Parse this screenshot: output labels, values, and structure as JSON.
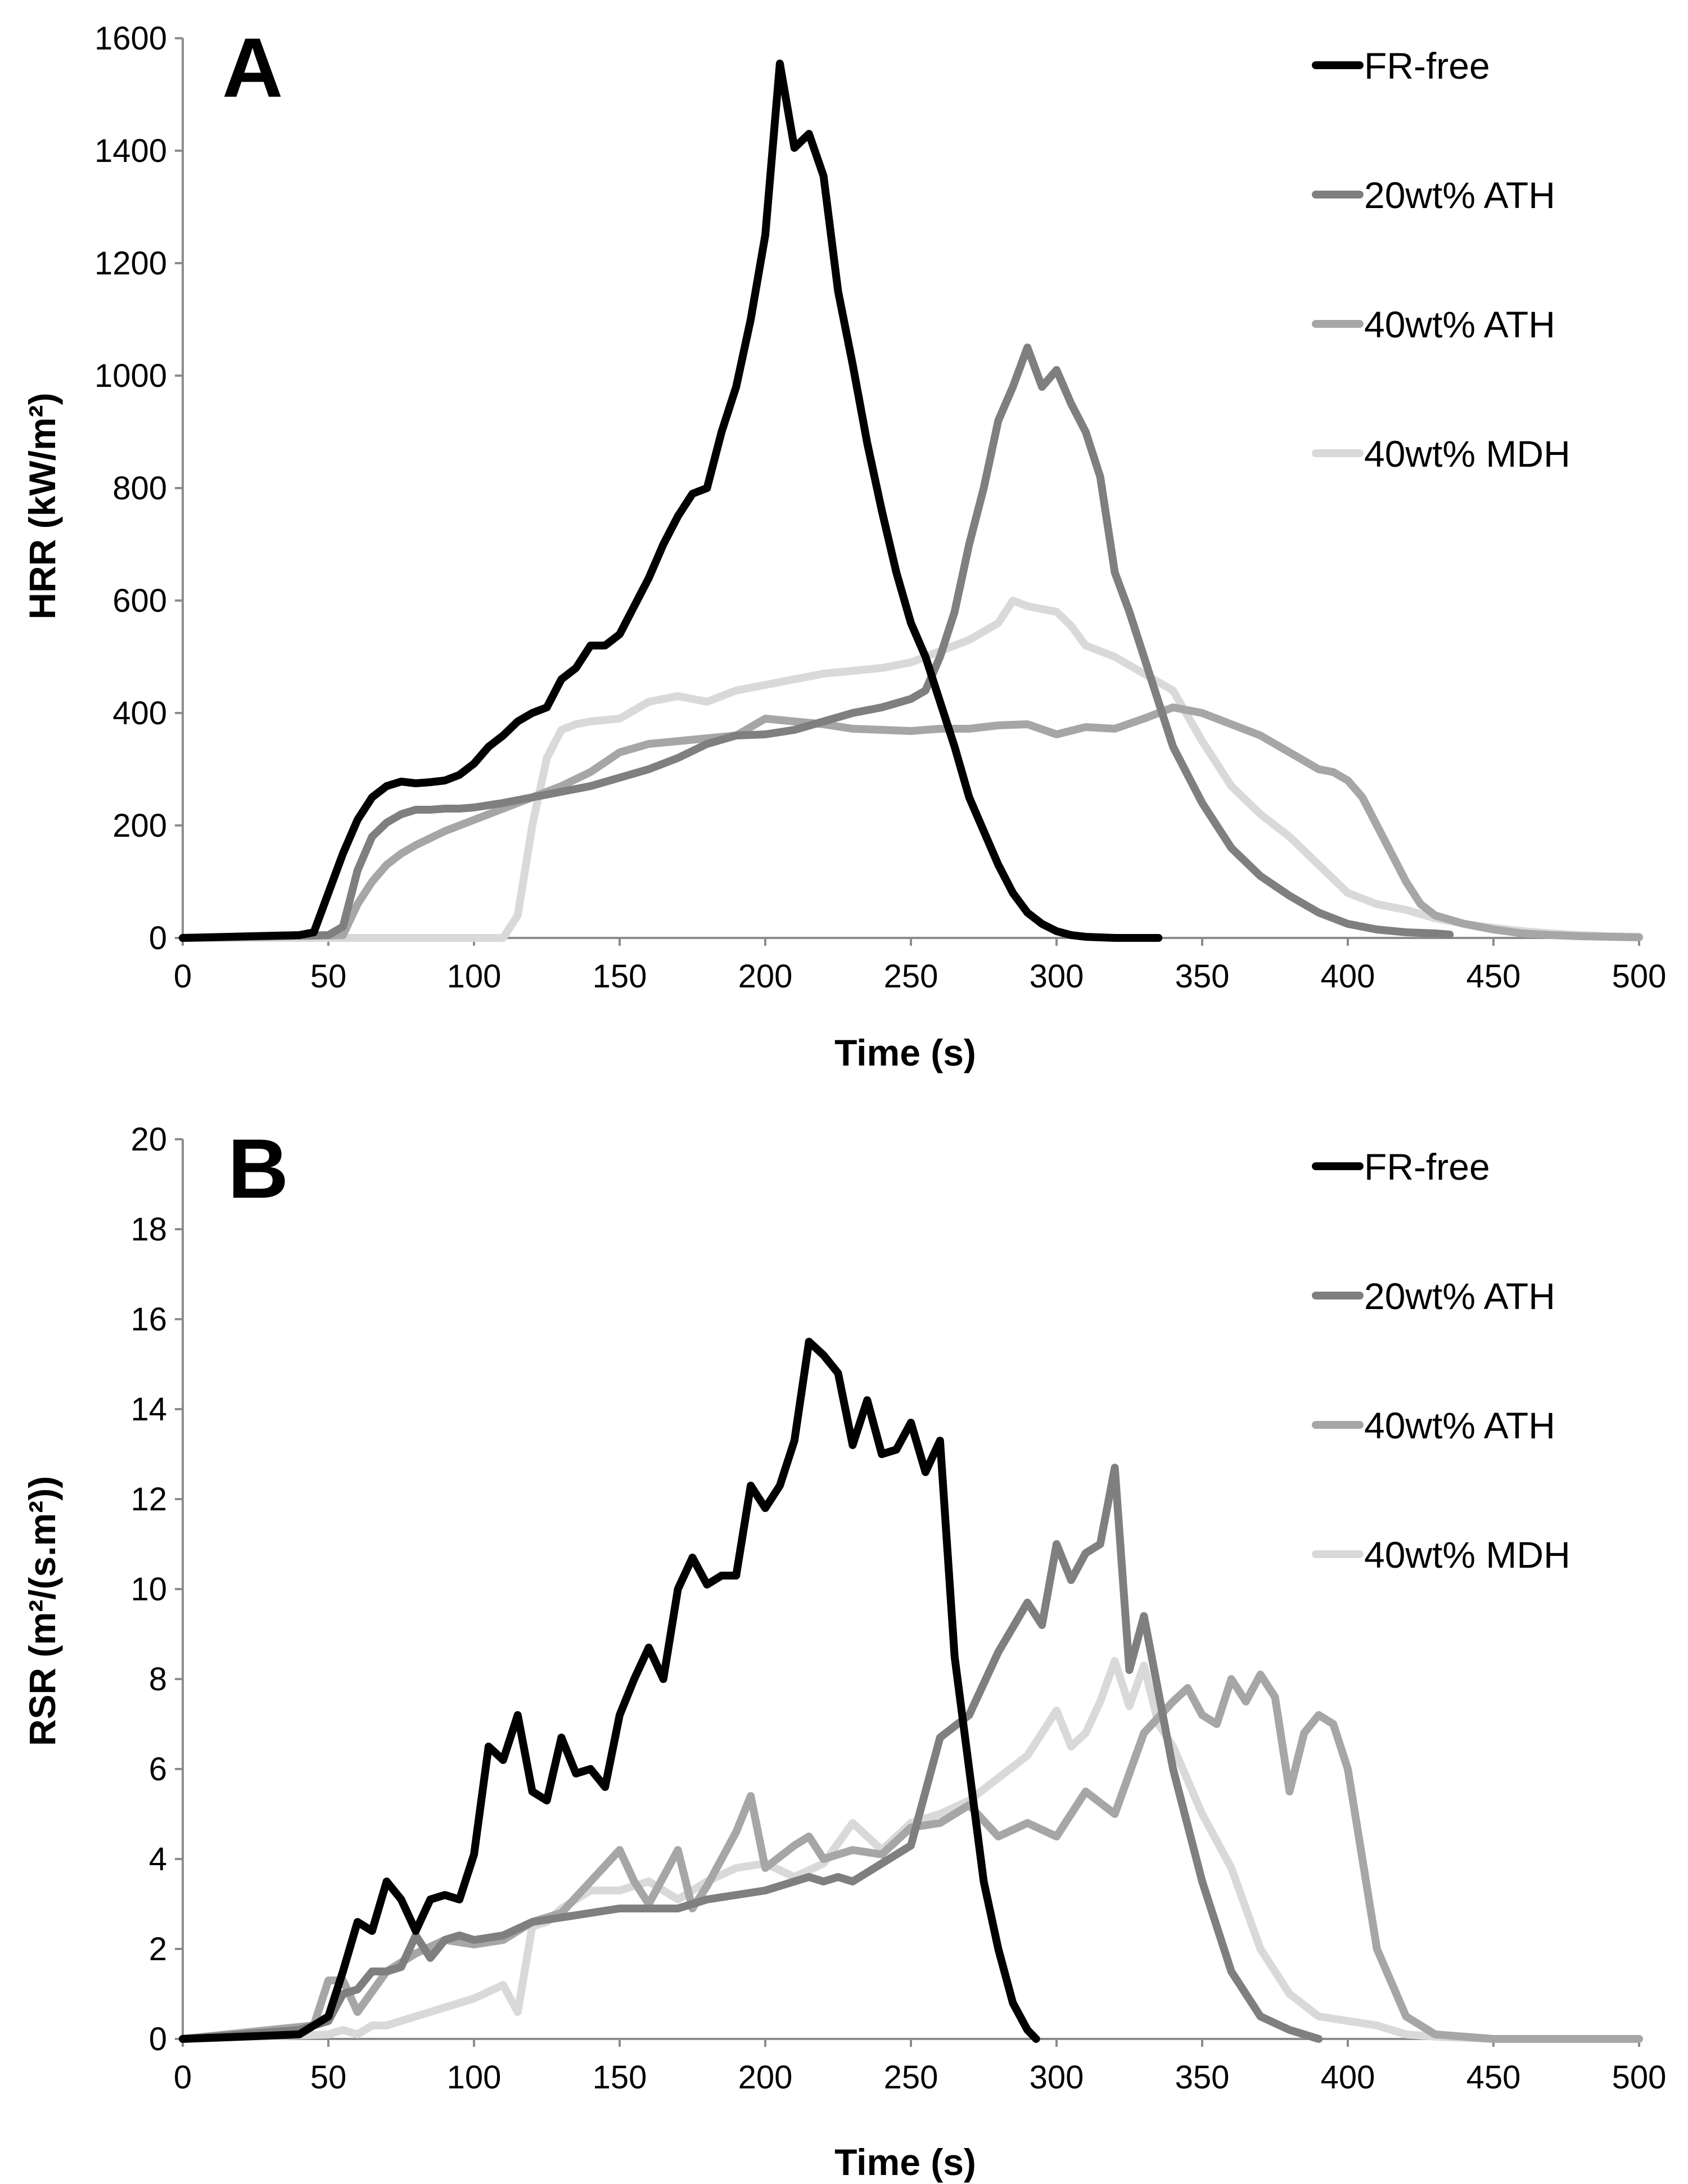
{
  "figure": {
    "panels": [
      "A",
      "B"
    ]
  },
  "chart_data": [
    {
      "panel_label": "A",
      "type": "line",
      "title": "",
      "xlabel": "Time (s)",
      "ylabel": "HRR (kW/m²)",
      "xlim": [
        0,
        500
      ],
      "ylim": [
        0,
        1600
      ],
      "xticks": [
        0,
        50,
        100,
        150,
        200,
        250,
        300,
        350,
        400,
        450,
        500
      ],
      "yticks": [
        0,
        200,
        400,
        600,
        800,
        1000,
        1200,
        1400,
        1600
      ],
      "grid": false,
      "legend": "right",
      "series": [
        {
          "name": "FR-free",
          "color": "#000000",
          "x": [
            0,
            40,
            45,
            50,
            55,
            60,
            65,
            70,
            75,
            80,
            85,
            90,
            95,
            100,
            105,
            110,
            115,
            120,
            125,
            130,
            135,
            140,
            145,
            150,
            155,
            160,
            165,
            170,
            175,
            180,
            185,
            190,
            195,
            200,
            205,
            210,
            215,
            220,
            225,
            230,
            235,
            240,
            245,
            250,
            255,
            260,
            265,
            270,
            275,
            280,
            285,
            290,
            295,
            300,
            305,
            310,
            315,
            320,
            325,
            330,
            335
          ],
          "y": [
            0,
            5,
            10,
            80,
            150,
            210,
            250,
            270,
            278,
            275,
            277,
            280,
            290,
            310,
            340,
            360,
            385,
            400,
            410,
            460,
            480,
            520,
            520,
            540,
            590,
            640,
            700,
            750,
            790,
            800,
            900,
            980,
            1100,
            1250,
            1555,
            1405,
            1430,
            1355,
            1150,
            1020,
            880,
            760,
            650,
            560,
            500,
            420,
            340,
            250,
            190,
            130,
            80,
            45,
            25,
            12,
            5,
            2,
            1,
            0,
            0,
            0,
            0
          ]
        },
        {
          "name": "20wt% ATH",
          "color": "#7f7f7f",
          "x": [
            0,
            50,
            55,
            60,
            65,
            70,
            75,
            80,
            85,
            90,
            95,
            100,
            110,
            120,
            130,
            140,
            150,
            160,
            170,
            180,
            190,
            200,
            210,
            220,
            230,
            240,
            250,
            255,
            260,
            265,
            270,
            275,
            280,
            285,
            290,
            295,
            300,
            305,
            310,
            315,
            320,
            325,
            330,
            340,
            350,
            360,
            370,
            380,
            390,
            400,
            410,
            420,
            430,
            435
          ],
          "y": [
            0,
            5,
            20,
            120,
            180,
            205,
            220,
            228,
            228,
            230,
            230,
            232,
            240,
            250,
            260,
            270,
            285,
            300,
            320,
            345,
            360,
            362,
            370,
            385,
            400,
            410,
            425,
            440,
            500,
            580,
            700,
            800,
            920,
            980,
            1050,
            980,
            1010,
            950,
            900,
            820,
            650,
            580,
            500,
            340,
            240,
            160,
            110,
            75,
            45,
            25,
            15,
            10,
            8,
            6
          ]
        },
        {
          "name": "40wt% ATH",
          "color": "#a6a6a6",
          "x": [
            0,
            55,
            60,
            65,
            70,
            75,
            80,
            90,
            100,
            110,
            120,
            130,
            140,
            150,
            160,
            170,
            180,
            190,
            200,
            210,
            220,
            230,
            240,
            250,
            260,
            270,
            280,
            290,
            300,
            310,
            320,
            330,
            340,
            350,
            360,
            370,
            380,
            390,
            395,
            400,
            405,
            410,
            415,
            420,
            425,
            430,
            440,
            450,
            460,
            470,
            480,
            490,
            500
          ],
          "y": [
            0,
            5,
            60,
            100,
            130,
            150,
            165,
            190,
            210,
            230,
            250,
            270,
            295,
            330,
            345,
            350,
            355,
            360,
            390,
            385,
            380,
            372,
            370,
            368,
            372,
            372,
            378,
            380,
            362,
            375,
            372,
            390,
            410,
            400,
            380,
            360,
            330,
            300,
            295,
            280,
            250,
            200,
            150,
            100,
            60,
            40,
            25,
            15,
            8,
            5,
            3,
            2,
            1
          ]
        },
        {
          "name": "40wt% MDH",
          "color": "#d9d9d9",
          "x": [
            0,
            110,
            115,
            120,
            125,
            130,
            135,
            140,
            150,
            160,
            170,
            180,
            190,
            200,
            210,
            220,
            230,
            240,
            250,
            260,
            270,
            280,
            285,
            290,
            295,
            300,
            305,
            310,
            320,
            330,
            340,
            350,
            360,
            370,
            380,
            390,
            400,
            410,
            420,
            430,
            440,
            450,
            460,
            470,
            480,
            490,
            500
          ],
          "y": [
            0,
            0,
            40,
            200,
            320,
            370,
            380,
            385,
            390,
            420,
            430,
            420,
            440,
            450,
            460,
            470,
            475,
            480,
            490,
            510,
            530,
            560,
            600,
            590,
            585,
            580,
            555,
            520,
            500,
            470,
            440,
            350,
            270,
            220,
            180,
            130,
            80,
            60,
            50,
            35,
            25,
            18,
            12,
            8,
            5,
            3,
            2
          ]
        }
      ]
    },
    {
      "panel_label": "B",
      "type": "line",
      "title": "",
      "xlabel": "Time (s)",
      "ylabel": "RSR (m²/(s.m²))",
      "xlim": [
        0,
        500
      ],
      "ylim": [
        0,
        20
      ],
      "xticks": [
        0,
        50,
        100,
        150,
        200,
        250,
        300,
        350,
        400,
        450,
        500
      ],
      "yticks": [
        0,
        2,
        4,
        6,
        8,
        10,
        12,
        14,
        16,
        18,
        20
      ],
      "grid": false,
      "legend": "right",
      "series": [
        {
          "name": "FR-free",
          "color": "#000000",
          "x": [
            0,
            40,
            45,
            50,
            55,
            60,
            65,
            70,
            75,
            80,
            85,
            90,
            95,
            100,
            105,
            110,
            115,
            120,
            125,
            130,
            135,
            140,
            145,
            150,
            155,
            160,
            165,
            170,
            175,
            180,
            185,
            190,
            195,
            200,
            205,
            210,
            215,
            220,
            225,
            230,
            235,
            240,
            245,
            250,
            255,
            260,
            265,
            270,
            275,
            280,
            285,
            290,
            293
          ],
          "y": [
            0,
            0.1,
            0.3,
            0.5,
            1.5,
            2.6,
            2.4,
            3.5,
            3.1,
            2.4,
            3.1,
            3.2,
            3.1,
            4.1,
            6.5,
            6.2,
            7.2,
            5.5,
            5.3,
            6.7,
            5.9,
            6.0,
            5.6,
            7.2,
            8.0,
            8.7,
            8.0,
            10.0,
            10.7,
            10.1,
            10.3,
            10.3,
            12.3,
            11.8,
            12.3,
            13.3,
            15.5,
            15.2,
            14.8,
            13.2,
            14.2,
            13.0,
            13.1,
            13.7,
            12.6,
            13.3,
            8.5,
            6.0,
            3.5,
            2.0,
            0.8,
            0.2,
            0.0
          ]
        },
        {
          "name": "20wt% ATH",
          "color": "#7f7f7f",
          "x": [
            0,
            40,
            50,
            55,
            60,
            65,
            70,
            75,
            80,
            85,
            90,
            95,
            100,
            110,
            120,
            130,
            140,
            150,
            160,
            170,
            180,
            190,
            200,
            210,
            215,
            220,
            225,
            230,
            240,
            250,
            260,
            270,
            280,
            290,
            295,
            300,
            305,
            310,
            315,
            320,
            325,
            330,
            340,
            350,
            360,
            370,
            380,
            390
          ],
          "y": [
            0,
            0.2,
            0.4,
            1.0,
            1.1,
            1.5,
            1.5,
            1.6,
            2.3,
            1.8,
            2.2,
            2.3,
            2.2,
            2.3,
            2.6,
            2.7,
            2.8,
            2.9,
            2.9,
            2.9,
            3.1,
            3.2,
            3.3,
            3.5,
            3.6,
            3.5,
            3.6,
            3.5,
            3.9,
            4.3,
            6.7,
            7.2,
            8.6,
            9.7,
            9.2,
            11.0,
            10.2,
            10.8,
            11.0,
            12.7,
            8.2,
            9.4,
            6.0,
            3.5,
            1.5,
            0.5,
            0.2,
            0.0
          ]
        },
        {
          "name": "40wt% ATH",
          "color": "#a6a6a6",
          "x": [
            0,
            45,
            50,
            55,
            60,
            70,
            80,
            90,
            100,
            110,
            120,
            130,
            140,
            150,
            155,
            160,
            170,
            175,
            180,
            190,
            195,
            200,
            210,
            215,
            220,
            230,
            240,
            250,
            260,
            270,
            280,
            290,
            300,
            310,
            320,
            330,
            340,
            345,
            350,
            355,
            360,
            365,
            370,
            375,
            380,
            385,
            390,
            395,
            400,
            405,
            410,
            420,
            430,
            440,
            450,
            500
          ],
          "y": [
            0,
            0.3,
            1.3,
            1.3,
            0.6,
            1.5,
            1.9,
            2.2,
            2.1,
            2.2,
            2.6,
            2.8,
            3.5,
            4.2,
            3.5,
            3.0,
            4.2,
            2.9,
            3.4,
            4.6,
            5.4,
            3.8,
            4.3,
            4.5,
            4.0,
            4.2,
            4.1,
            4.7,
            4.8,
            5.2,
            4.5,
            4.8,
            4.5,
            5.5,
            5.0,
            6.8,
            7.5,
            7.8,
            7.2,
            7.0,
            8.0,
            7.5,
            8.1,
            7.6,
            5.5,
            6.8,
            7.2,
            7.0,
            6.0,
            4.0,
            2.0,
            0.5,
            0.1,
            0.05,
            0.0,
            0.0
          ]
        },
        {
          "name": "40wt% MDH",
          "color": "#d9d9d9",
          "x": [
            0,
            50,
            55,
            60,
            65,
            70,
            80,
            90,
            100,
            110,
            115,
            120,
            125,
            130,
            140,
            150,
            160,
            170,
            180,
            190,
            200,
            210,
            220,
            230,
            240,
            250,
            260,
            270,
            280,
            290,
            300,
            305,
            310,
            315,
            320,
            325,
            330,
            335,
            340,
            350,
            360,
            370,
            380,
            390,
            400,
            410,
            420,
            430,
            450,
            500
          ],
          "y": [
            0,
            0.1,
            0.2,
            0.1,
            0.3,
            0.3,
            0.5,
            0.7,
            0.9,
            1.2,
            0.6,
            2.5,
            2.6,
            2.9,
            3.3,
            3.3,
            3.5,
            3.1,
            3.5,
            3.8,
            3.9,
            3.6,
            3.9,
            4.8,
            4.2,
            4.8,
            5.0,
            5.3,
            5.8,
            6.3,
            7.3,
            6.5,
            6.8,
            7.5,
            8.4,
            7.4,
            8.3,
            7.0,
            6.5,
            5.0,
            3.8,
            2.0,
            1.0,
            0.5,
            0.4,
            0.3,
            0.1,
            0.05,
            0.0,
            0.0
          ]
        }
      ]
    }
  ]
}
